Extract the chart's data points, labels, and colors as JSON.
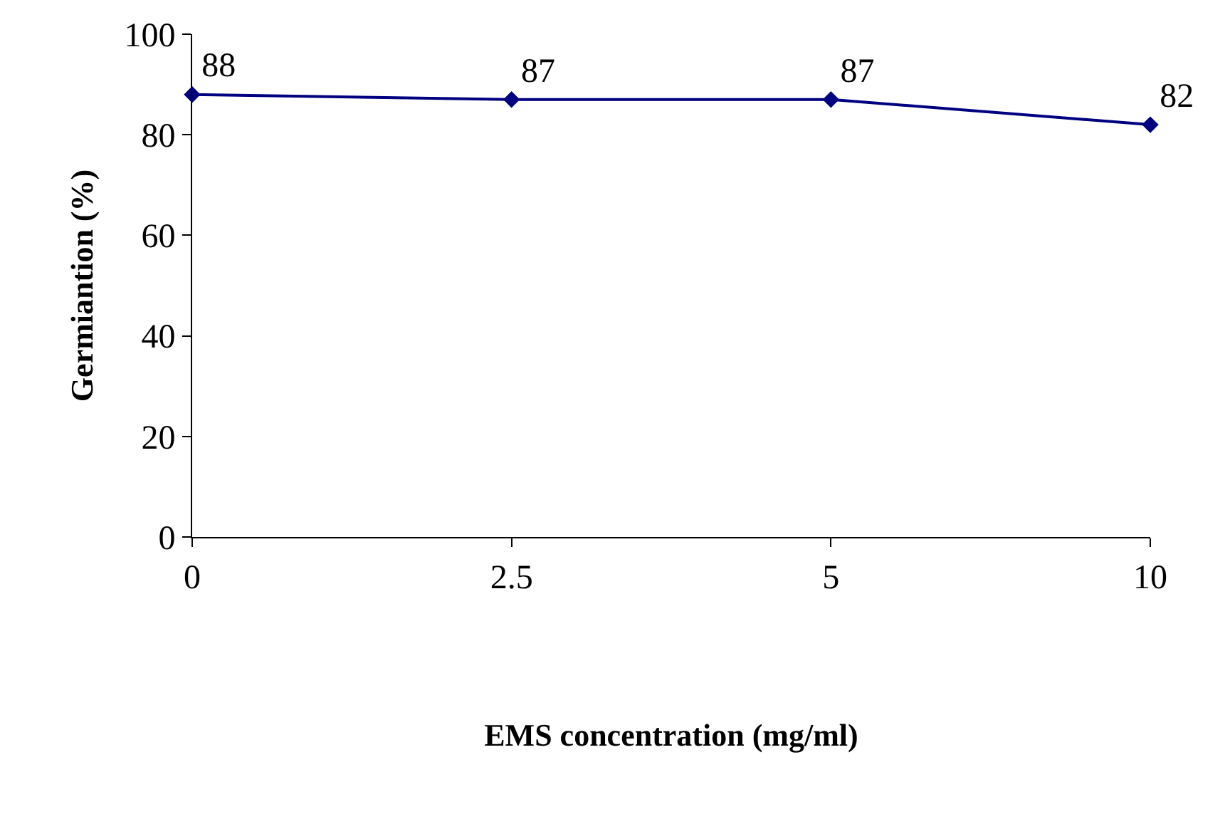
{
  "chart_data": {
    "type": "line",
    "xlabel": "EMS concentration (mg/ml)",
    "ylabel": "Germiantion (%)",
    "categories": [
      "0",
      "2.5",
      "5",
      "10"
    ],
    "series": [
      {
        "color": "#000080",
        "values": [
          88,
          87,
          87,
          82
        ]
      }
    ],
    "ylim": [
      0,
      100
    ],
    "yticks": [
      0,
      20,
      40,
      60,
      80,
      100
    ],
    "marker": "diamond",
    "line_style": "solid",
    "data_labels": true
  }
}
